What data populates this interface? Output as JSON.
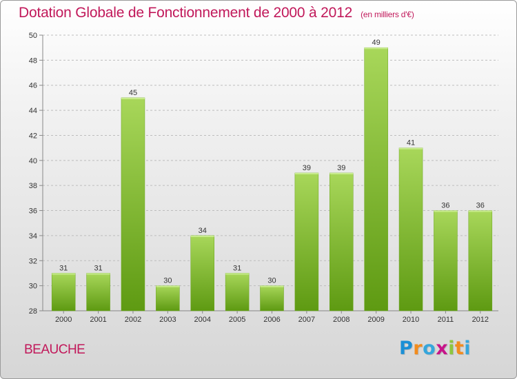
{
  "title": "Dotation Globale de Fonctionnement de 2000 à 2012",
  "subtitle": "(en milliers d'€)",
  "commune": "BEAUCHE",
  "brand": {
    "letters": [
      "P",
      "r",
      "o",
      "x",
      "i",
      "t",
      "i"
    ],
    "colors": [
      "#1a8fd6",
      "#f28c1e",
      "#35a6dc",
      "#c7158a",
      "#8dc63f",
      "#f28c1e",
      "#35a6dc"
    ]
  },
  "colors": {
    "accent": "#c1185a",
    "bar_light": "#a8d75a",
    "bar_dark": "#5e9a12"
  },
  "chart_data": {
    "type": "bar",
    "categories": [
      "2000",
      "2001",
      "2002",
      "2003",
      "2004",
      "2005",
      "2006",
      "2007",
      "2008",
      "2009",
      "2010",
      "2011",
      "2012"
    ],
    "values": [
      31,
      31,
      45,
      30,
      34,
      31,
      30,
      39,
      39,
      49,
      41,
      36,
      36
    ],
    "ylim": [
      28,
      50
    ],
    "yticks": [
      28,
      30,
      32,
      34,
      36,
      38,
      40,
      42,
      44,
      46,
      48,
      50
    ],
    "grid": true,
    "title": "Dotation Globale de Fonctionnement de 2000 à 2012",
    "xlabel": "",
    "ylabel": ""
  }
}
